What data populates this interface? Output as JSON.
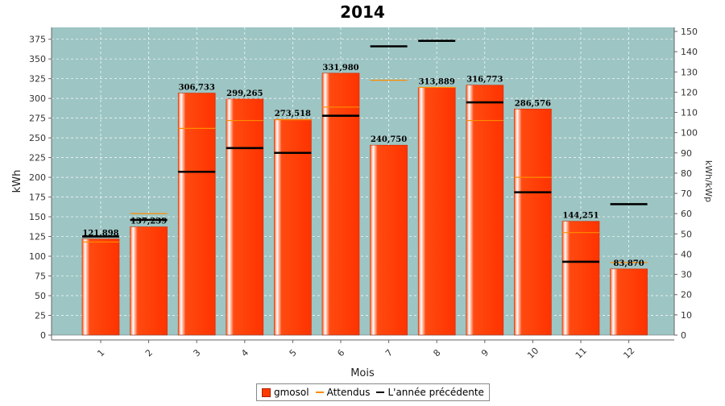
{
  "chart_data": {
    "type": "bar",
    "title": "2014",
    "xlabel": "Mois",
    "ylabel": "kWh",
    "y2label": "kWh/kWp",
    "categories": [
      "1",
      "2",
      "3",
      "4",
      "5",
      "6",
      "7",
      "8",
      "9",
      "10",
      "11",
      "12"
    ],
    "ylim": [
      0,
      390
    ],
    "y2lim": [
      0,
      152
    ],
    "yticks": [
      0,
      25,
      50,
      75,
      100,
      125,
      150,
      175,
      200,
      225,
      250,
      275,
      300,
      325,
      350,
      375
    ],
    "y2ticks": [
      0,
      10,
      20,
      30,
      40,
      50,
      60,
      70,
      80,
      90,
      100,
      110,
      120,
      130,
      140,
      150
    ],
    "grid": true,
    "legend_position": "bottom",
    "series": [
      {
        "name": "gmosol",
        "kind": "bar",
        "color": "#ff3b00",
        "values": [
          121.898,
          137.239,
          306.733,
          299.265,
          273.518,
          331.98,
          240.75,
          313.889,
          316.773,
          286.576,
          144.251,
          83.87
        ]
      },
      {
        "name": "Attendus",
        "kind": "marker",
        "color": "#ff8c00",
        "values": [
          118,
          154,
          262,
          272,
          273,
          289,
          323,
          314,
          272,
          200,
          130,
          92
        ]
      },
      {
        "name": "L'année précédente",
        "kind": "marker",
        "color": "#000000",
        "values": [
          125,
          146,
          207,
          237,
          231,
          278,
          366,
          373,
          295,
          181,
          93,
          166
        ]
      }
    ],
    "data_labels": [
      "121,898",
      "137,239",
      "306,733",
      "299,265",
      "273,518",
      "331,980",
      "240,750",
      "313,889",
      "316,773",
      "286,576",
      "144,251",
      "83,870"
    ],
    "colors": {
      "plot_bg": "#9dc5c3",
      "bar": "#ff3b00",
      "expected": "#ff8c00",
      "previous": "#000000"
    }
  }
}
